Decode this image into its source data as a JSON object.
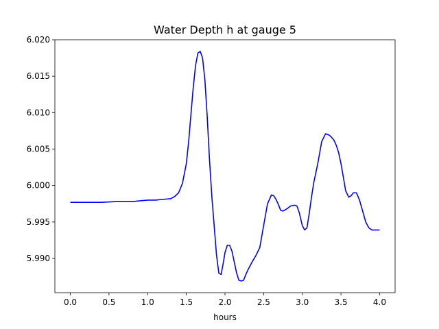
{
  "chart_data": {
    "type": "line",
    "title": "Water Depth h at gauge 5",
    "xlabel": "hours",
    "ylabel": "",
    "xlim": [
      -0.2,
      4.2
    ],
    "ylim": [
      5.9853,
      6.02
    ],
    "xticks": [
      0.0,
      0.5,
      1.0,
      1.5,
      2.0,
      2.5,
      3.0,
      3.5,
      4.0
    ],
    "xtick_labels": [
      "0.0",
      "0.5",
      "1.0",
      "1.5",
      "2.0",
      "2.5",
      "3.0",
      "3.5",
      "4.0"
    ],
    "yticks": [
      5.99,
      5.995,
      6.0,
      6.005,
      6.01,
      6.015,
      6.02
    ],
    "ytick_labels": [
      "5.990",
      "5.995",
      "6.000",
      "6.005",
      "6.010",
      "6.015",
      "6.020"
    ],
    "grid": false,
    "legend": "none",
    "series": [
      {
        "color": "#0000ff",
        "x": [
          0.0,
          0.2,
          0.4,
          0.6,
          0.8,
          1.0,
          1.1,
          1.2,
          1.3,
          1.35,
          1.4,
          1.45,
          1.5,
          1.53,
          1.56,
          1.59,
          1.62,
          1.65,
          1.68,
          1.71,
          1.74,
          1.77,
          1.8,
          1.83,
          1.86,
          1.89,
          1.92,
          1.95,
          1.98,
          2.0,
          2.03,
          2.06,
          2.09,
          2.12,
          2.15,
          2.18,
          2.21,
          2.24,
          2.27,
          2.3,
          2.35,
          2.4,
          2.45,
          2.5,
          2.55,
          2.6,
          2.63,
          2.66,
          2.69,
          2.72,
          2.75,
          2.8,
          2.85,
          2.9,
          2.93,
          2.96,
          3.0,
          3.03,
          3.06,
          3.09,
          3.12,
          3.15,
          3.2,
          3.25,
          3.3,
          3.35,
          3.38,
          3.41,
          3.44,
          3.47,
          3.5,
          3.53,
          3.56,
          3.6,
          3.63,
          3.66,
          3.7,
          3.74,
          3.78,
          3.82,
          3.86,
          3.9,
          3.93,
          3.96,
          4.0
        ],
        "y": [
          5.9977,
          5.9977,
          5.9977,
          5.9978,
          5.9978,
          5.998,
          5.998,
          5.9981,
          5.9982,
          5.9985,
          5.999,
          6.0003,
          6.003,
          6.006,
          6.0098,
          6.0135,
          6.0165,
          6.0182,
          6.0184,
          6.0175,
          6.0145,
          6.0095,
          6.0035,
          5.9985,
          5.9945,
          5.9905,
          5.988,
          5.9878,
          5.9895,
          5.9908,
          5.9918,
          5.9918,
          5.991,
          5.9895,
          5.988,
          5.987,
          5.9869,
          5.987,
          5.9878,
          5.9885,
          5.9895,
          5.9904,
          5.9915,
          5.9945,
          5.9975,
          5.9987,
          5.9986,
          5.9981,
          5.9974,
          5.9966,
          5.9965,
          5.9968,
          5.9972,
          5.9973,
          5.9972,
          5.9963,
          5.9945,
          5.9939,
          5.9942,
          5.9962,
          5.9985,
          6.0005,
          6.003,
          6.006,
          6.0071,
          6.0069,
          6.0066,
          6.0062,
          6.0055,
          6.0045,
          6.003,
          6.0012,
          5.9993,
          5.9984,
          5.9986,
          5.999,
          5.999,
          5.998,
          5.9965,
          5.995,
          5.9942,
          5.9939,
          5.9939,
          5.9939,
          5.9939
        ]
      }
    ]
  }
}
